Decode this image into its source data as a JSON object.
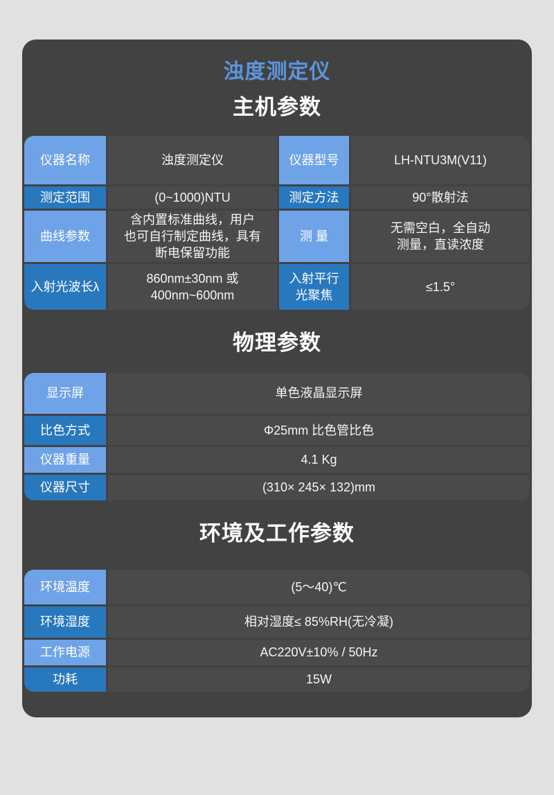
{
  "page_title": "浊度测定仪",
  "colors": {
    "page_background": "#e1e1e1",
    "card_background": "#424242",
    "cell_background": "#4a4a4a",
    "label_light_blue": "#6fa3e8",
    "label_dark_blue": "#2878be",
    "title_blue": "#5c95de",
    "text_white": "#ffffff"
  },
  "sections": {
    "main": {
      "heading": "主机参数",
      "rows": [
        {
          "label1": "仪器名称",
          "value1": "浊度测定仪",
          "label2": "仪器型号",
          "value2": "LH-NTU3M(V11)"
        },
        {
          "label1": "测定范围",
          "value1": "(0~1000)NTU",
          "label2": "测定方法",
          "value2": "90°散射法"
        },
        {
          "label1": "曲线参数",
          "value1": "含内置标准曲线，用户\n也可自行制定曲线，具有\n断电保留功能",
          "label2": "测 量",
          "value2": "无需空白，全自动\n测量，直读浓度"
        },
        {
          "label1": "入射光波长λ",
          "value1": "860nm±30nm 或\n400nm~600nm",
          "label2": "入射平行\n光聚焦",
          "value2": "≤1.5°"
        }
      ]
    },
    "physical": {
      "heading": "物理参数",
      "rows": [
        {
          "label": "显示屏",
          "value": "单色液晶显示屏"
        },
        {
          "label": "比色方式",
          "value": "Φ25mm 比色管比色"
        },
        {
          "label": "仪器重量",
          "value": "4.1 Kg"
        },
        {
          "label": "仪器尺寸",
          "value": "(310× 245× 132)mm"
        }
      ]
    },
    "environment": {
      "heading": "环境及工作参数",
      "rows": [
        {
          "label": "环境温度",
          "value": "(5～40)℃"
        },
        {
          "label": "环境湿度",
          "value": "相对湿度≤ 85%RH(无冷凝)"
        },
        {
          "label": "工作电源",
          "value": "AC220V±10% / 50Hz"
        },
        {
          "label": "功耗",
          "value": "15W"
        }
      ]
    }
  }
}
